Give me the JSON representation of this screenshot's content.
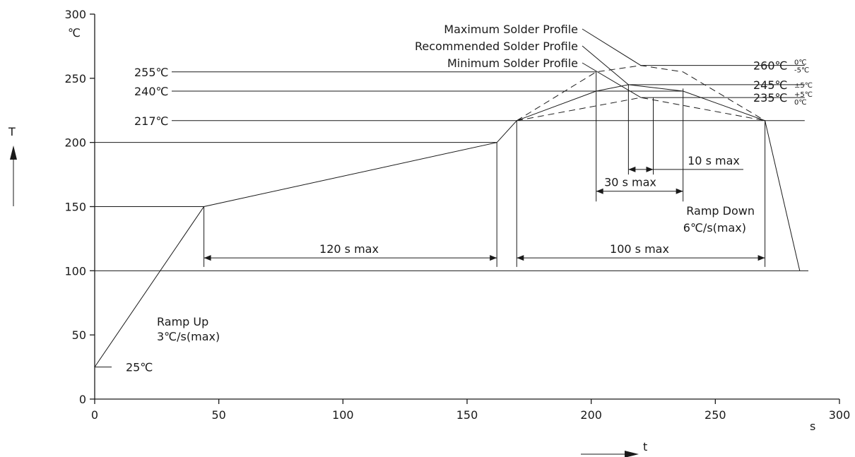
{
  "chart_data": {
    "type": "line",
    "title": "",
    "xlabel": "t",
    "ylabel": "T",
    "x_unit": "s",
    "y_unit": "℃",
    "xlim": [
      0,
      300
    ],
    "ylim": [
      0,
      300
    ],
    "x_ticks": [
      "0",
      "50",
      "100",
      "150",
      "200",
      "250",
      "300"
    ],
    "y_ticks": [
      "0",
      "50",
      "100",
      "150",
      "200",
      "250",
      "300"
    ],
    "grid": false,
    "series": [
      {
        "name": "Minimum Solder Profile",
        "style": "dashed",
        "points": [
          [
            170,
            217
          ],
          [
            220,
            235
          ],
          [
            270,
            217
          ]
        ]
      },
      {
        "name": "Recommended Solder Profile",
        "style": "solid",
        "points": [
          [
            0,
            25
          ],
          [
            44,
            150
          ],
          [
            162,
            200
          ],
          [
            170,
            217
          ],
          [
            202,
            240
          ],
          [
            215,
            245
          ],
          [
            237,
            240
          ],
          [
            270,
            217
          ],
          [
            284,
            100
          ]
        ]
      },
      {
        "name": "Maximum Solder Profile",
        "style": "dashed",
        "points": [
          [
            170,
            217
          ],
          [
            202,
            255
          ],
          [
            220,
            260
          ],
          [
            237,
            255
          ],
          [
            270,
            217
          ]
        ]
      }
    ],
    "temperature_levels": [
      {
        "label": "255℃",
        "y": 255
      },
      {
        "label": "240℃",
        "y": 240
      },
      {
        "label": "217℃",
        "y": 217
      },
      {
        "label": "25℃",
        "y": 25
      }
    ],
    "peak_labels": [
      {
        "label": "260℃",
        "tol_top": "0℃",
        "tol_bottom": "-5℃",
        "y": 260
      },
      {
        "label": "245℃",
        "tol_top": "±5℃",
        "tol_bottom": "",
        "y": 245
      },
      {
        "label": "235℃",
        "tol_top": "+5℃",
        "tol_bottom": "0℃",
        "y": 235
      }
    ],
    "durations": [
      {
        "label": "120 s max",
        "x1": 44,
        "x2": 162,
        "y": 110
      },
      {
        "label": "100 s max",
        "x1": 170,
        "x2": 270,
        "y": 110
      },
      {
        "label": "30 s max",
        "x1": 202,
        "x2": 237,
        "y": 162
      },
      {
        "label": "10 s max",
        "x1": 215,
        "x2": 225,
        "y": 179
      }
    ],
    "annotations": {
      "ramp_up_title": "Ramp Up",
      "ramp_up_rate": "3℃/s(max)",
      "ramp_down_title": "Ramp Down",
      "ramp_down_rate": "6℃/s(max)"
    }
  }
}
